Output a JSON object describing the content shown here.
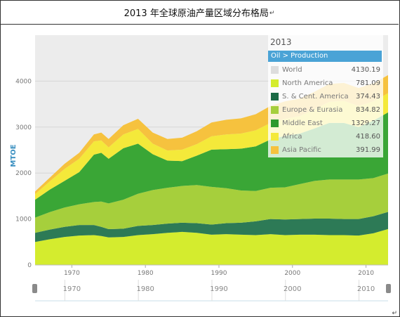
{
  "page": {
    "title": "2013 年全球原油产量区域分布格局",
    "title_mark": "↵",
    "end_mark": "↵"
  },
  "chart_data": {
    "type": "area",
    "stacked": true,
    "ylabel": "MTOE",
    "ylim": [
      0,
      5000
    ],
    "xlim": [
      1965,
      2013
    ],
    "y_ticks": [
      0,
      1000,
      2000,
      3000,
      4000
    ],
    "x_ticks": [
      1970,
      1980,
      1990,
      2000,
      2010
    ],
    "navigator_ticks": [
      1970,
      1980,
      1990,
      2000,
      2010
    ],
    "x": [
      1965,
      1967,
      1969,
      1971,
      1973,
      1974,
      1975,
      1977,
      1979,
      1981,
      1983,
      1985,
      1987,
      1989,
      1991,
      1993,
      1995,
      1997,
      1999,
      2001,
      2003,
      2005,
      2007,
      2009,
      2011,
      2013
    ],
    "series": [
      {
        "name": "North America",
        "color": "#d4ec2e",
        "values": [
          500,
          560,
          610,
          640,
          650,
          630,
          600,
          610,
          650,
          670,
          700,
          720,
          700,
          660,
          670,
          660,
          650,
          670,
          650,
          660,
          660,
          650,
          650,
          640,
          690,
          781
        ]
      },
      {
        "name": "S. & Cent. America",
        "color": "#2d7a56",
        "values": [
          200,
          210,
          220,
          230,
          220,
          200,
          180,
          180,
          200,
          200,
          200,
          200,
          210,
          220,
          240,
          260,
          300,
          330,
          340,
          340,
          350,
          360,
          350,
          360,
          370,
          374
        ]
      },
      {
        "name": "Europe & Eurasia",
        "color": "#a6cf3c",
        "values": [
          330,
          380,
          420,
          450,
          500,
          550,
          560,
          630,
          700,
          760,
          780,
          800,
          830,
          820,
          760,
          700,
          660,
          680,
          700,
          760,
          820,
          850,
          860,
          860,
          830,
          835
        ]
      },
      {
        "name": "Middle East",
        "color": "#3aa636",
        "values": [
          390,
          490,
          580,
          700,
          1030,
          1060,
          970,
          1120,
          1090,
          780,
          590,
          540,
          640,
          810,
          850,
          910,
          970,
          1050,
          1120,
          1100,
          1140,
          1230,
          1230,
          1140,
          1250,
          1329
        ]
      },
      {
        "name": "Africa",
        "color": "#f4e93a",
        "values": [
          120,
          180,
          260,
          290,
          290,
          270,
          250,
          300,
          320,
          230,
          220,
          250,
          250,
          290,
          320,
          330,
          350,
          360,
          370,
          380,
          420,
          460,
          480,
          460,
          420,
          419
        ]
      },
      {
        "name": "Asia Pacific",
        "color": "#f6c23e",
        "values": [
          60,
          80,
          110,
          130,
          150,
          170,
          180,
          200,
          220,
          240,
          250,
          260,
          280,
          300,
          320,
          330,
          350,
          370,
          380,
          380,
          380,
          390,
          390,
          390,
          390,
          392
        ]
      }
    ],
    "legend": {
      "year": "2013",
      "header": "Oil > Production",
      "placement": "top-right",
      "items": [
        {
          "name": "World",
          "value": "4130.19",
          "color": "#dddddd"
        },
        {
          "name": "North America",
          "value": "781.09",
          "color": "#d4ec2e"
        },
        {
          "name": "S. & Cent. America",
          "value": "374.43",
          "color": "#1c6b46"
        },
        {
          "name": "Europe & Eurasia",
          "value": "834.82",
          "color": "#a6cf3c"
        },
        {
          "name": "Middle East",
          "value": "1329.27",
          "color": "#2e9a2e"
        },
        {
          "name": "Africa",
          "value": "418.60",
          "color": "#f4e93a"
        },
        {
          "name": "Asia Pacific",
          "value": "391.99",
          "color": "#f6c23e"
        }
      ]
    },
    "grid": true
  }
}
